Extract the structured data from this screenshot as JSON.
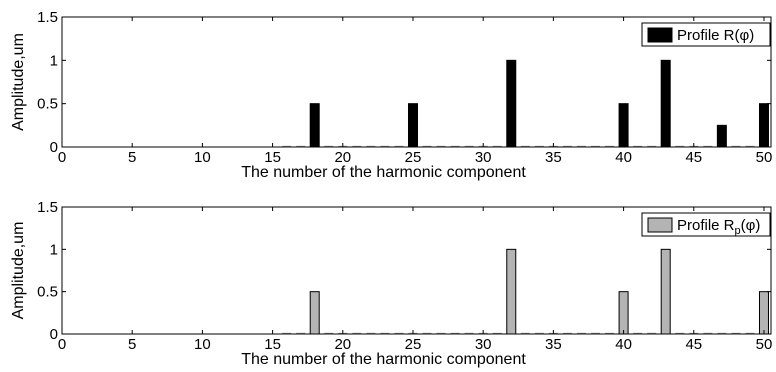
{
  "chart_data": [
    {
      "type": "bar",
      "xlabel": "The number of the harmonic component",
      "ylabel": "Amplitude,um",
      "xlim": [
        0,
        50.5
      ],
      "ylim": [
        0,
        1.5
      ],
      "xticks": [
        0,
        5,
        10,
        15,
        20,
        25,
        30,
        35,
        40,
        45,
        50
      ],
      "yticks": [
        0,
        0.5,
        1,
        1.5
      ],
      "bar_color": "#000000",
      "legend_position": "top-right",
      "series": [
        {
          "name": "Profile R(φ)",
          "name_base": "Profile R",
          "name_sub": "",
          "name_tail": "(φ)",
          "x": [
            18,
            25,
            32,
            40,
            43,
            47,
            50
          ],
          "values": [
            0.5,
            0.5,
            1.0,
            0.5,
            1.0,
            0.25,
            0.5
          ]
        }
      ]
    },
    {
      "type": "bar",
      "xlabel": "The number of the harmonic component",
      "ylabel": "Amplitude,um",
      "xlim": [
        0,
        50.5
      ],
      "ylim": [
        0,
        1.5
      ],
      "xticks": [
        0,
        5,
        10,
        15,
        20,
        25,
        30,
        35,
        40,
        45,
        50
      ],
      "yticks": [
        0,
        0.5,
        1,
        1.5
      ],
      "bar_color": "#b4b4b4",
      "legend_position": "top-right",
      "series": [
        {
          "name": "Profile Rp(φ)",
          "name_base": "Profile R",
          "name_sub": "p",
          "name_tail": "(φ)",
          "x": [
            18,
            32,
            40,
            43,
            50
          ],
          "values": [
            0.5,
            1.0,
            0.5,
            1.0,
            0.5
          ]
        }
      ]
    }
  ]
}
